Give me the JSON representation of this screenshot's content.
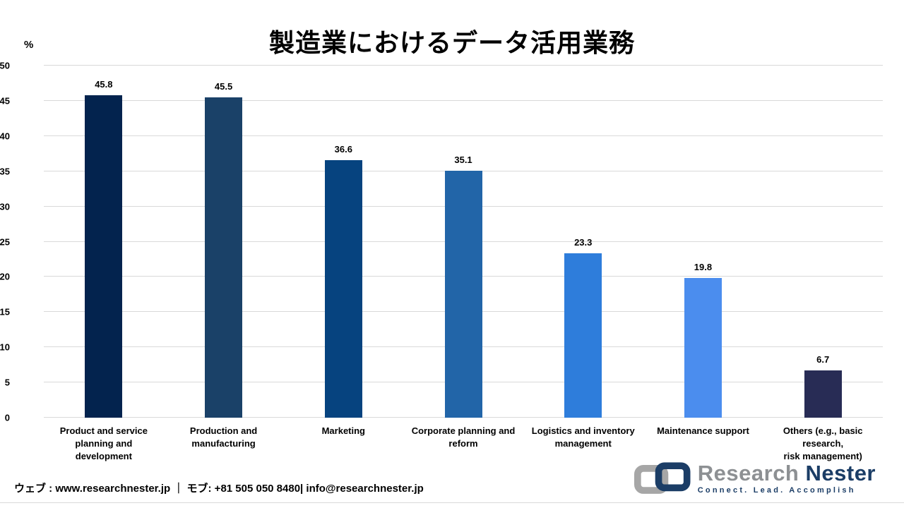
{
  "title": "製造業におけるデータ活用業務",
  "chart_data": {
    "type": "bar",
    "title": "製造業におけるデータ活用業務",
    "ylabel": "%",
    "ylim": [
      0,
      50
    ],
    "ytick_step": 5,
    "grid": true,
    "legend": "none",
    "categories": [
      "Product and service\nplanning and development",
      "Production and\nmanufacturing",
      "Marketing",
      "Corporate planning and\nreform",
      "Logistics and inventory\nmanagement",
      "Maintenance support",
      "Others (e.g., basic research,\nrisk management)"
    ],
    "values": [
      45.8,
      45.5,
      36.6,
      35.1,
      23.3,
      19.8,
      6.7
    ],
    "bar_colors": [
      "#03234e",
      "#1a4168",
      "#06437f",
      "#2265a8",
      "#2e7ddb",
      "#4b8dee",
      "#282c55"
    ]
  },
  "footer": {
    "contact": "ウェブ : www.researchnester.jp ｜ モブ: +81 505 050 8480| info@researchnester.jp"
  },
  "logo": {
    "brand_first": "Research",
    "brand_second": "Nester",
    "tagline": "Connect. Lead. Accomplish",
    "colors": {
      "gray": "#a6a6a6",
      "navy": "#1b3d66"
    }
  }
}
